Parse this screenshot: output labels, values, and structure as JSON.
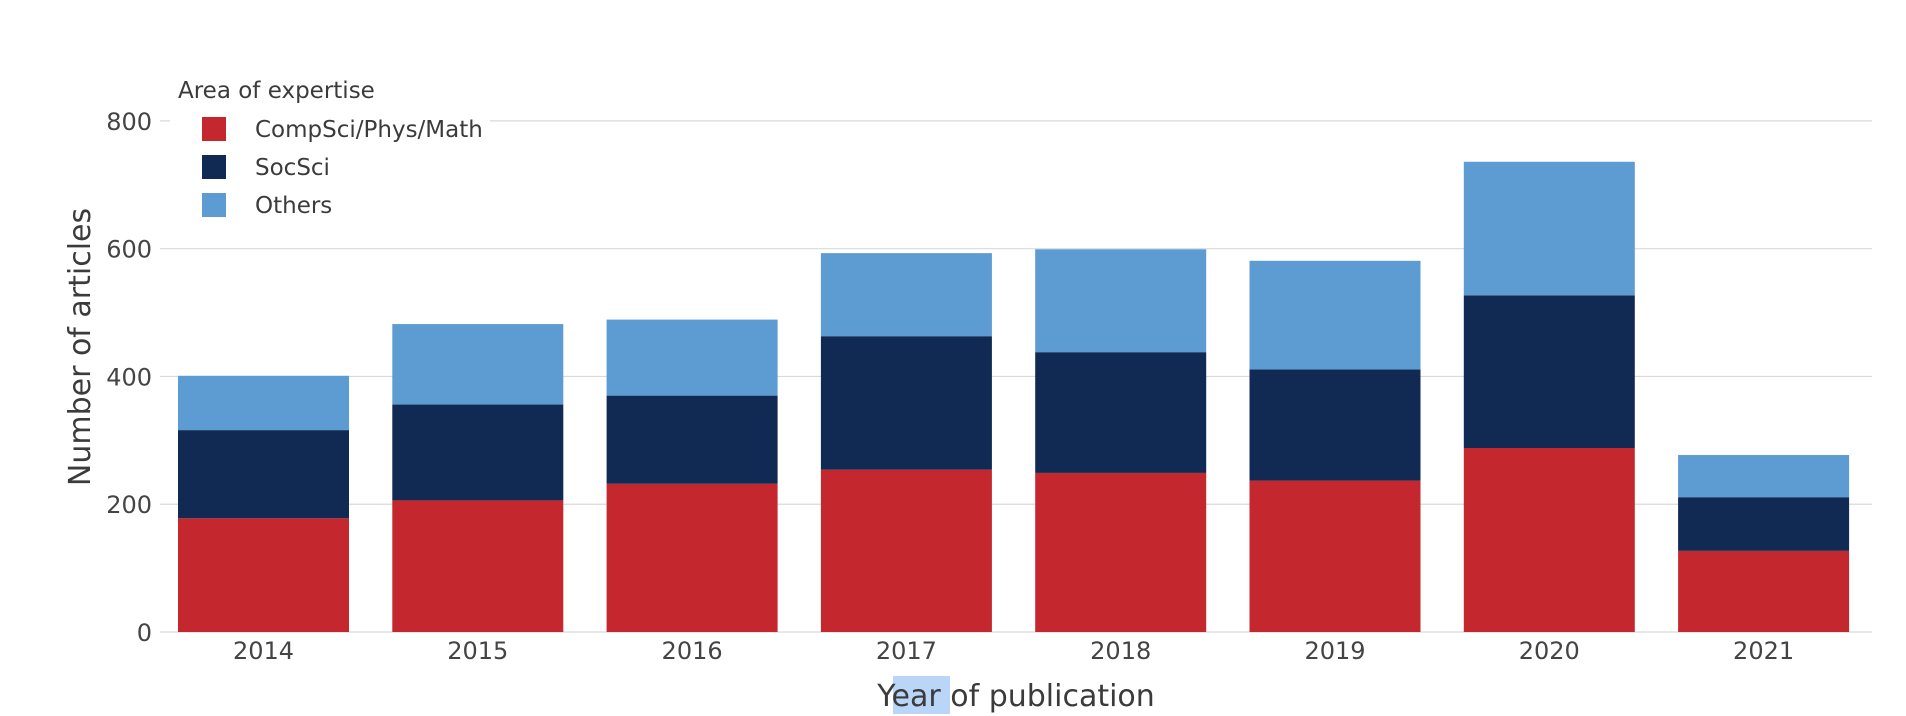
{
  "chart_data": {
    "type": "bar",
    "stacked": true,
    "categories": [
      "2014",
      "2015",
      "2016",
      "2017",
      "2018",
      "2019",
      "2020",
      "2021"
    ],
    "series": [
      {
        "name": "CompSci/Phys/Math",
        "color": "#c4282e",
        "values": [
          178,
          206,
          232,
          254,
          249,
          237,
          288,
          127
        ]
      },
      {
        "name": "SocSci",
        "color": "#102a54",
        "values": [
          138,
          150,
          138,
          209,
          189,
          174,
          239,
          84
        ]
      },
      {
        "name": "Others",
        "color": "#5d9bd3",
        "values": [
          85,
          126,
          119,
          130,
          161,
          170,
          209,
          66
        ]
      }
    ],
    "xlabel": "Year of publication",
    "ylabel": "Number of articles",
    "legend_title": "Area of expertise",
    "legend_position": "top-left",
    "ylim": [
      0,
      900
    ],
    "yticks": [
      0,
      200,
      400,
      600,
      800
    ],
    "grid": true,
    "highlight_text": "Year",
    "highlight_color": "#b9d5f7"
  }
}
